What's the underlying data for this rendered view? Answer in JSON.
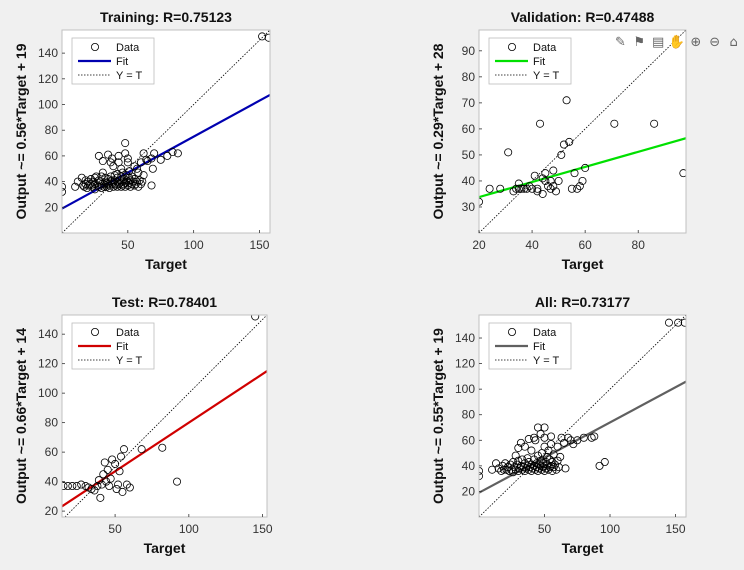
{
  "toolbar": {
    "icons": [
      "brush-icon",
      "data-tips-icon",
      "save-copy-icon",
      "pan-icon",
      "zoom-in-icon",
      "zoom-out-icon",
      "home-icon"
    ],
    "glyphs": [
      "✎",
      "⚑",
      "▤",
      "✋",
      "⊕",
      "⊖",
      "⌂"
    ]
  },
  "chart_data": [
    {
      "type": "scatter",
      "title": "Training: R=0.75123",
      "xlabel": "Target",
      "ylabel": "Output ~= 0.56*Target + 19",
      "xlim": [
        0,
        158
      ],
      "ylim": [
        0,
        158
      ],
      "xticks": [
        50,
        100,
        150
      ],
      "yticks": [
        20,
        40,
        60,
        80,
        100,
        120,
        140
      ],
      "fit_color": "#0000b0",
      "fit": {
        "slope": 0.56,
        "intercept": 19
      },
      "legend": [
        "Data",
        "Fit",
        "Y = T"
      ],
      "legend_position": "top-left",
      "points": [
        [
          0,
          36
        ],
        [
          0,
          32
        ],
        [
          10,
          36
        ],
        [
          12,
          40
        ],
        [
          15,
          43
        ],
        [
          16,
          37
        ],
        [
          17,
          36
        ],
        [
          18,
          38
        ],
        [
          18,
          41
        ],
        [
          19,
          35
        ],
        [
          20,
          37
        ],
        [
          20,
          40
        ],
        [
          21,
          38
        ],
        [
          22,
          42
        ],
        [
          23,
          36
        ],
        [
          24,
          40
        ],
        [
          24,
          37
        ],
        [
          25,
          38
        ],
        [
          25,
          34
        ],
        [
          25,
          43
        ],
        [
          26,
          44
        ],
        [
          27,
          37
        ],
        [
          28,
          41
        ],
        [
          28,
          36
        ],
        [
          29,
          40
        ],
        [
          30,
          38
        ],
        [
          30,
          35
        ],
        [
          30,
          44
        ],
        [
          31,
          47
        ],
        [
          32,
          38
        ],
        [
          32,
          36
        ],
        [
          33,
          40
        ],
        [
          33,
          43
        ],
        [
          34,
          36
        ],
        [
          34,
          39
        ],
        [
          35,
          38
        ],
        [
          35,
          42
        ],
        [
          36,
          37
        ],
        [
          36,
          35
        ],
        [
          37,
          40
        ],
        [
          37,
          44
        ],
        [
          38,
          38
        ],
        [
          38,
          41
        ],
        [
          39,
          36
        ],
        [
          39,
          52
        ],
        [
          40,
          38
        ],
        [
          40,
          41
        ],
        [
          40,
          45
        ],
        [
          41,
          37
        ],
        [
          42,
          36
        ],
        [
          42,
          40
        ],
        [
          42,
          43
        ],
        [
          43,
          38
        ],
        [
          43,
          55
        ],
        [
          44,
          39
        ],
        [
          44,
          41
        ],
        [
          45,
          36
        ],
        [
          45,
          44
        ],
        [
          45,
          50
        ],
        [
          46,
          37
        ],
        [
          46,
          40
        ],
        [
          47,
          38
        ],
        [
          47,
          42
        ],
        [
          48,
          36
        ],
        [
          48,
          39
        ],
        [
          48,
          62
        ],
        [
          49,
          41
        ],
        [
          49,
          45
        ],
        [
          50,
          37
        ],
        [
          50,
          40
        ],
        [
          50,
          55
        ],
        [
          50,
          58
        ],
        [
          51,
          39
        ],
        [
          51,
          43
        ],
        [
          52,
          36
        ],
        [
          52,
          41
        ],
        [
          53,
          38
        ],
        [
          53,
          44
        ],
        [
          54,
          40
        ],
        [
          55,
          37
        ],
        [
          55,
          42
        ],
        [
          55,
          52
        ],
        [
          56,
          38
        ],
        [
          57,
          40
        ],
        [
          57,
          50
        ],
        [
          58,
          36
        ],
        [
          59,
          41
        ],
        [
          60,
          38
        ],
        [
          60,
          55
        ],
        [
          61,
          40
        ],
        [
          62,
          45
        ],
        [
          62,
          62
        ],
        [
          64,
          57
        ],
        [
          65,
          56
        ],
        [
          68,
          58
        ],
        [
          68,
          37
        ],
        [
          69,
          50
        ],
        [
          70,
          62
        ],
        [
          75,
          57
        ],
        [
          80,
          60
        ],
        [
          84,
          63
        ],
        [
          88,
          62
        ],
        [
          48,
          70
        ],
        [
          43,
          60
        ],
        [
          35,
          61
        ],
        [
          28,
          60
        ],
        [
          37,
          55
        ],
        [
          42,
          46
        ],
        [
          46,
          47
        ],
        [
          51,
          48
        ],
        [
          58,
          47
        ],
        [
          31,
          56
        ],
        [
          38,
          58
        ],
        [
          152,
          153
        ],
        [
          157,
          152
        ]
      ]
    },
    {
      "type": "scatter",
      "title": "Validation: R=0.47488",
      "xlabel": "Target",
      "ylabel": "Output ~= 0.29*Target + 28",
      "xlim": [
        20,
        98
      ],
      "ylim": [
        20,
        98
      ],
      "xticks": [
        20,
        40,
        60,
        80
      ],
      "yticks": [
        30,
        40,
        50,
        60,
        70,
        80,
        90
      ],
      "fit_color": "#00e000",
      "fit": {
        "slope": 0.29,
        "intercept": 28
      },
      "legend": [
        "Data",
        "Fit",
        "Y = T"
      ],
      "legend_position": "top-left",
      "points": [
        [
          20,
          32
        ],
        [
          24,
          37
        ],
        [
          28,
          37
        ],
        [
          31,
          51
        ],
        [
          33,
          36
        ],
        [
          34,
          37
        ],
        [
          35,
          39
        ],
        [
          35,
          37
        ],
        [
          36,
          37
        ],
        [
          37,
          37
        ],
        [
          38,
          37
        ],
        [
          39,
          38
        ],
        [
          40,
          37
        ],
        [
          42,
          36
        ],
        [
          42,
          37
        ],
        [
          43,
          62
        ],
        [
          44,
          41
        ],
        [
          45,
          43
        ],
        [
          45,
          40
        ],
        [
          46,
          38
        ],
        [
          47,
          40
        ],
        [
          47,
          37
        ],
        [
          48,
          38
        ],
        [
          48,
          44
        ],
        [
          49,
          36
        ],
        [
          50,
          40
        ],
        [
          51,
          50
        ],
        [
          52,
          54
        ],
        [
          53,
          71
        ],
        [
          54,
          55
        ],
        [
          55,
          37
        ],
        [
          56,
          43
        ],
        [
          57,
          37
        ],
        [
          58,
          38
        ],
        [
          59,
          40
        ],
        [
          60,
          45
        ],
        [
          71,
          62
        ],
        [
          86,
          62
        ],
        [
          97,
          43
        ],
        [
          44,
          35
        ],
        [
          41,
          42
        ]
      ]
    },
    {
      "type": "scatter",
      "title": "Test: R=0.78401",
      "xlabel": "Target",
      "ylabel": "Output ~= 0.66*Target + 14",
      "xlim": [
        14,
        153
      ],
      "ylim": [
        16,
        153
      ],
      "xticks": [
        50,
        100,
        150
      ],
      "yticks": [
        20,
        40,
        60,
        80,
        100,
        120,
        140
      ],
      "fit_color": "#d00000",
      "fit": {
        "slope": 0.66,
        "intercept": 14
      },
      "legend": [
        "Data",
        "Fit",
        "Y = T"
      ],
      "legend_position": "top-left",
      "points": [
        [
          15,
          37
        ],
        [
          18,
          37
        ],
        [
          21,
          37
        ],
        [
          24,
          37
        ],
        [
          27,
          38
        ],
        [
          30,
          37
        ],
        [
          32,
          36
        ],
        [
          34,
          35
        ],
        [
          36,
          34
        ],
        [
          38,
          37
        ],
        [
          39,
          41
        ],
        [
          40,
          29
        ],
        [
          41,
          38
        ],
        [
          42,
          45
        ],
        [
          43,
          53
        ],
        [
          44,
          40
        ],
        [
          45,
          48
        ],
        [
          46,
          37
        ],
        [
          47,
          42
        ],
        [
          48,
          55
        ],
        [
          50,
          52
        ],
        [
          51,
          35
        ],
        [
          52,
          38
        ],
        [
          53,
          47
        ],
        [
          54,
          57
        ],
        [
          55,
          33
        ],
        [
          56,
          62
        ],
        [
          58,
          38
        ],
        [
          60,
          36
        ],
        [
          68,
          62
        ],
        [
          82,
          63
        ],
        [
          92,
          40
        ],
        [
          145,
          152
        ]
      ]
    },
    {
      "type": "scatter",
      "title": "All: R=0.73177",
      "xlabel": "Target",
      "ylabel": "Output ~= 0.55*Target + 19",
      "xlim": [
        0,
        158
      ],
      "ylim": [
        0,
        158
      ],
      "xticks": [
        50,
        100,
        150
      ],
      "yticks": [
        20,
        40,
        60,
        80,
        100,
        120,
        140
      ],
      "fit_color": "#606060",
      "fit": {
        "slope": 0.55,
        "intercept": 19
      },
      "legend": [
        "Data",
        "Fit",
        "Y = T"
      ],
      "legend_position": "top-left",
      "points": [
        [
          0,
          36
        ],
        [
          0,
          32
        ],
        [
          10,
          37
        ],
        [
          13,
          42
        ],
        [
          15,
          38
        ],
        [
          17,
          36
        ],
        [
          18,
          40
        ],
        [
          19,
          37
        ],
        [
          20,
          42
        ],
        [
          21,
          37
        ],
        [
          22,
          39
        ],
        [
          23,
          36
        ],
        [
          24,
          41
        ],
        [
          25,
          37
        ],
        [
          26,
          43
        ],
        [
          26,
          35
        ],
        [
          27,
          39
        ],
        [
          28,
          37
        ],
        [
          29,
          41
        ],
        [
          30,
          36
        ],
        [
          30,
          44
        ],
        [
          31,
          38
        ],
        [
          32,
          40
        ],
        [
          33,
          37
        ],
        [
          33,
          45
        ],
        [
          34,
          39
        ],
        [
          35,
          36
        ],
        [
          35,
          42
        ],
        [
          36,
          38
        ],
        [
          37,
          40
        ],
        [
          37,
          46
        ],
        [
          38,
          37
        ],
        [
          38,
          43
        ],
        [
          39,
          39
        ],
        [
          40,
          36
        ],
        [
          40,
          41
        ],
        [
          40,
          52
        ],
        [
          41,
          38
        ],
        [
          42,
          40
        ],
        [
          42,
          45
        ],
        [
          43,
          37
        ],
        [
          43,
          60
        ],
        [
          44,
          39
        ],
        [
          44,
          42
        ],
        [
          45,
          36
        ],
        [
          45,
          48
        ],
        [
          46,
          38
        ],
        [
          46,
          41
        ],
        [
          47,
          40
        ],
        [
          47,
          44
        ],
        [
          48,
          37
        ],
        [
          48,
          50
        ],
        [
          49,
          39
        ],
        [
          49,
          42
        ],
        [
          50,
          36
        ],
        [
          50,
          40
        ],
        [
          50,
          55
        ],
        [
          50,
          62
        ],
        [
          51,
          38
        ],
        [
          51,
          43
        ],
        [
          52,
          41
        ],
        [
          52,
          47
        ],
        [
          53,
          37
        ],
        [
          53,
          52
        ],
        [
          54,
          39
        ],
        [
          54,
          45
        ],
        [
          55,
          40
        ],
        [
          55,
          57
        ],
        [
          56,
          36
        ],
        [
          56,
          43
        ],
        [
          57,
          39
        ],
        [
          57,
          49
        ],
        [
          58,
          41
        ],
        [
          59,
          37
        ],
        [
          60,
          44
        ],
        [
          60,
          55
        ],
        [
          61,
          39
        ],
        [
          62,
          47
        ],
        [
          63,
          62
        ],
        [
          65,
          58
        ],
        [
          66,
          38
        ],
        [
          68,
          62
        ],
        [
          70,
          60
        ],
        [
          72,
          57
        ],
        [
          75,
          60
        ],
        [
          80,
          62
        ],
        [
          86,
          62
        ],
        [
          88,
          63
        ],
        [
          92,
          40
        ],
        [
          96,
          43
        ],
        [
          45,
          70
        ],
        [
          50,
          70
        ],
        [
          38,
          61
        ],
        [
          42,
          62
        ],
        [
          30,
          54
        ],
        [
          35,
          55
        ],
        [
          32,
          58
        ],
        [
          47,
          65
        ],
        [
          55,
          63
        ],
        [
          28,
          48
        ],
        [
          145,
          152
        ],
        [
          152,
          152
        ],
        [
          157,
          152
        ]
      ]
    }
  ]
}
